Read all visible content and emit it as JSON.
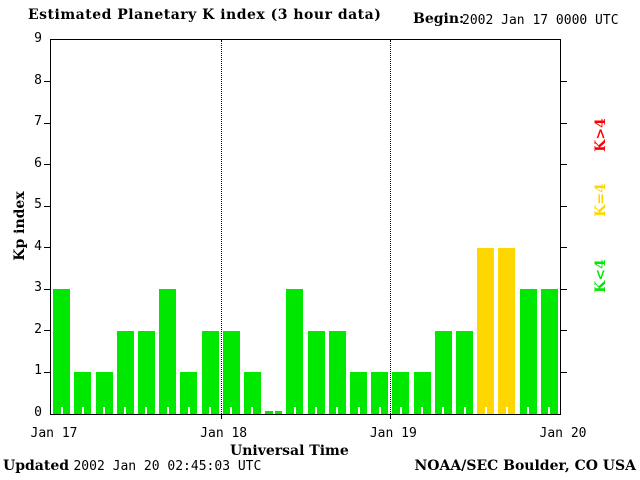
{
  "header": {
    "title": "Estimated Planetary K index (3 hour data)",
    "begin_label": "Begin:",
    "begin_value": "2002 Jan 17 0000 UTC"
  },
  "axes": {
    "ylabel": "Kp index",
    "xlabel": "Universal Time"
  },
  "chart_data": {
    "type": "bar",
    "title": "Estimated Planetary K index (3 hour data)",
    "xlabel": "Universal Time",
    "ylabel": "Kp index",
    "ylim": [
      0,
      9
    ],
    "y_ticks": [
      0,
      1,
      2,
      3,
      4,
      5,
      6,
      7,
      8,
      9
    ],
    "x_tick_labels": [
      "Jan 17",
      "Jan 18",
      "Jan 19",
      "Jan 20"
    ],
    "bin_hours": 3,
    "begin": "2002 Jan 17 0000 UTC",
    "values": [
      3,
      1,
      1,
      2,
      2,
      3,
      1,
      2,
      2,
      1,
      0,
      3,
      2,
      2,
      1,
      1,
      1,
      1,
      2,
      2,
      4,
      4,
      3,
      3
    ],
    "color_rule": {
      "below_4": "#00e800",
      "equal_4": "#ffd700",
      "above_4": "#ff0000"
    },
    "grid": "dotted vertical lines at each day boundary (Jan 18, Jan 19)",
    "legend_position": "right, rotated 90deg"
  },
  "legend": {
    "items": [
      {
        "label": "K>4",
        "color": "#ff0000"
      },
      {
        "label": "K=4",
        "color": "#ffd700"
      },
      {
        "label": "K<4",
        "color": "#00e800"
      }
    ]
  },
  "footer": {
    "updated_label": "Updated",
    "updated_value": "2002 Jan 20 02:45:03 UTC",
    "credit": "NOAA/SEC Boulder, CO USA"
  }
}
